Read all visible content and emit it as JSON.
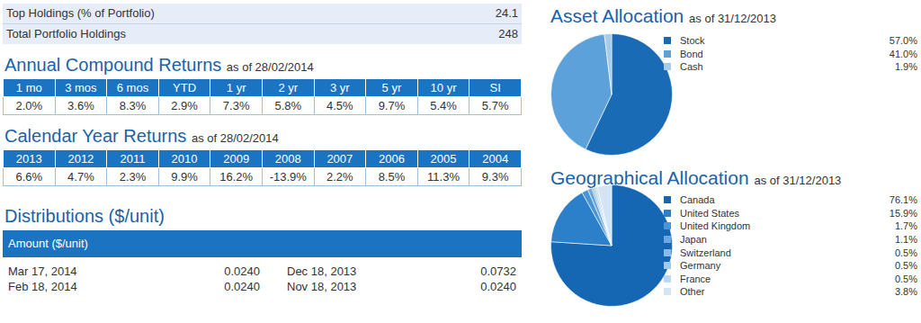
{
  "holdings": {
    "rows": [
      {
        "label": "Top Holdings (% of Portfolio)",
        "value": "24.1"
      },
      {
        "label": "Total Portfolio Holdings",
        "value": "248"
      }
    ]
  },
  "annual_returns": {
    "title": "Annual Compound Returns",
    "subtitle": "as of 28/02/2014",
    "header": [
      "1 mo",
      "3 mos",
      "6 mos",
      "YTD",
      "1 yr",
      "2 yr",
      "3 yr",
      "5 yr",
      "10 yr",
      "SI"
    ],
    "row": [
      "2.0%",
      "3.6%",
      "8.3%",
      "2.9%",
      "7.3%",
      "5.8%",
      "4.5%",
      "9.7%",
      "5.4%",
      "5.7%"
    ]
  },
  "calendar_returns": {
    "title": "Calendar Year Returns",
    "subtitle": "as of 28/02/2014",
    "header": [
      "2013",
      "2012",
      "2011",
      "2010",
      "2009",
      "2008",
      "2007",
      "2006",
      "2005",
      "2004"
    ],
    "row": [
      "6.6%",
      "4.7%",
      "2.3%",
      "9.9%",
      "16.2%",
      "-13.9%",
      "2.2%",
      "8.5%",
      "11.3%",
      "9.3%"
    ]
  },
  "distributions": {
    "title": "Distributions ($/unit)",
    "header": "Amount ($/unit)",
    "rows": [
      [
        "Mar 17, 2014",
        "0.0240",
        "Dec 18, 2013",
        "0.0732"
      ],
      [
        "Feb 18, 2014",
        "0.0240",
        "Nov 18, 2013",
        "0.0240"
      ]
    ]
  },
  "chart_data": [
    {
      "type": "pie",
      "title": "Asset Allocation",
      "subtitle": "as of 31/12/2013",
      "categories": [
        "Stock",
        "Bond",
        "Cash"
      ],
      "values": [
        57.0,
        41.0,
        1.9
      ],
      "value_labels": [
        "57.0%",
        "41.0%",
        "1.9%"
      ],
      "colors": [
        "#1a6bb5",
        "#5ca1da",
        "#a9cbea"
      ]
    },
    {
      "type": "pie",
      "title": "Geographical Allocation",
      "subtitle": "as of 31/12/2013",
      "categories": [
        "Canada",
        "United States",
        "United Kingdom",
        "Japan",
        "Switzerland",
        "Germany",
        "France",
        "Other"
      ],
      "values": [
        76.1,
        15.9,
        1.7,
        1.1,
        0.5,
        0.5,
        0.5,
        3.8
      ],
      "value_labels": [
        "76.1%",
        "15.9%",
        "1.7%",
        "1.1%",
        "0.5%",
        "0.5%",
        "0.5%",
        "3.8%"
      ],
      "colors": [
        "#1667b3",
        "#2b80c9",
        "#4a95d5",
        "#6aa8dd",
        "#8bbbe5",
        "#a3c9ea",
        "#bcd8f0",
        "#d3e5f5"
      ]
    }
  ]
}
